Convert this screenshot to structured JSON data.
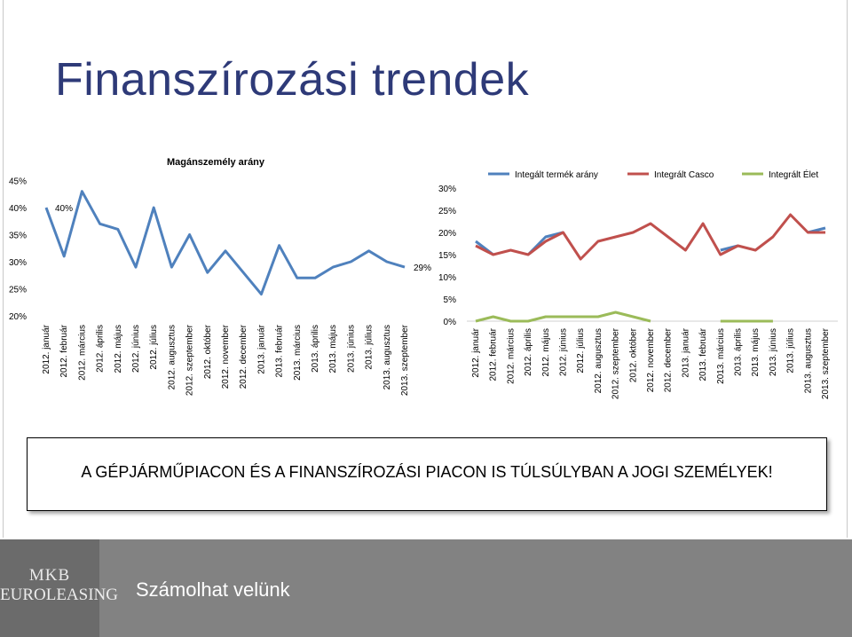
{
  "slide": {
    "title": "Finanszírozási trendek",
    "callout": "A GÉPJÁRMŰPIACON ÉS A FINANSZÍROZÁSI PIACON IS TÚLSÚLYBAN A JOGI SZEMÉLYEK!",
    "footer_text": "Számolhat velünk",
    "logo_top": "MKB",
    "logo_bottom": "EUROLEASING"
  },
  "colors": {
    "series_blue": "#4f81bd",
    "series_red": "#c0504d",
    "series_green": "#9bbb59",
    "footer_bg": "#828282",
    "title": "#2e3a78"
  },
  "chart_data": [
    {
      "type": "line",
      "title": "Magánszemély arány",
      "categories": [
        "2012. január",
        "2012. február",
        "2012. március",
        "2012. április",
        "2012. május",
        "2012. június",
        "2012. július",
        "2012. augusztus",
        "2012. szeptember",
        "2012. október",
        "2012. november",
        "2012. december",
        "2013. január",
        "2013. február",
        "2013. március",
        "2013. április",
        "2013. május",
        "2013. június",
        "2013. július",
        "2013. augusztus",
        "2013. szeptember"
      ],
      "series": [
        {
          "values": [
            40,
            31,
            43,
            37,
            36,
            29,
            40,
            29,
            35,
            28,
            32,
            28,
            24,
            33,
            27,
            27,
            29,
            30,
            32,
            30,
            29
          ]
        }
      ],
      "data_labels": [
        {
          "index": 0,
          "text": "40%"
        },
        {
          "index": 20,
          "text": "29%"
        }
      ],
      "ylim": [
        20,
        45
      ],
      "yticks": [
        "20%",
        "25%",
        "30%",
        "35%",
        "40%",
        "45%"
      ],
      "grid": false
    },
    {
      "type": "line",
      "title": "",
      "categories": [
        "2012. január",
        "2012. február",
        "2012. március",
        "2012. április",
        "2012. május",
        "2012. június",
        "2012. július",
        "2012. augusztus",
        "2012. szeptember",
        "2012. október",
        "2012. november",
        "2012. december",
        "2013. január",
        "2013. február",
        "2013. március",
        "2013. április",
        "2013. május",
        "2013. június",
        "2013. július",
        "2013. augusztus",
        "2013. szeptember"
      ],
      "series": [
        {
          "name": "Integált termék arány",
          "values": [
            18,
            15,
            null,
            15,
            19,
            20,
            null,
            null,
            null,
            null,
            null,
            null,
            null,
            null,
            16,
            17,
            null,
            null,
            null,
            20,
            21
          ]
        },
        {
          "name": "Integrált Casco",
          "values": [
            17,
            15,
            16,
            15,
            18,
            20,
            14,
            18,
            19,
            20,
            22,
            19,
            16,
            22,
            15,
            17,
            16,
            19,
            24,
            20,
            20
          ]
        },
        {
          "name": "Integrált Élet",
          "values": [
            0,
            1,
            0,
            0,
            1,
            1,
            1,
            1,
            2,
            1,
            0,
            null,
            null,
            null,
            0,
            0,
            0,
            0,
            null,
            null,
            null
          ]
        }
      ],
      "ylim": [
        0,
        30
      ],
      "yticks": [
        "0%",
        "5%",
        "10%",
        "15%",
        "20%",
        "25%",
        "30%"
      ],
      "legend": "top",
      "grid": false
    }
  ]
}
